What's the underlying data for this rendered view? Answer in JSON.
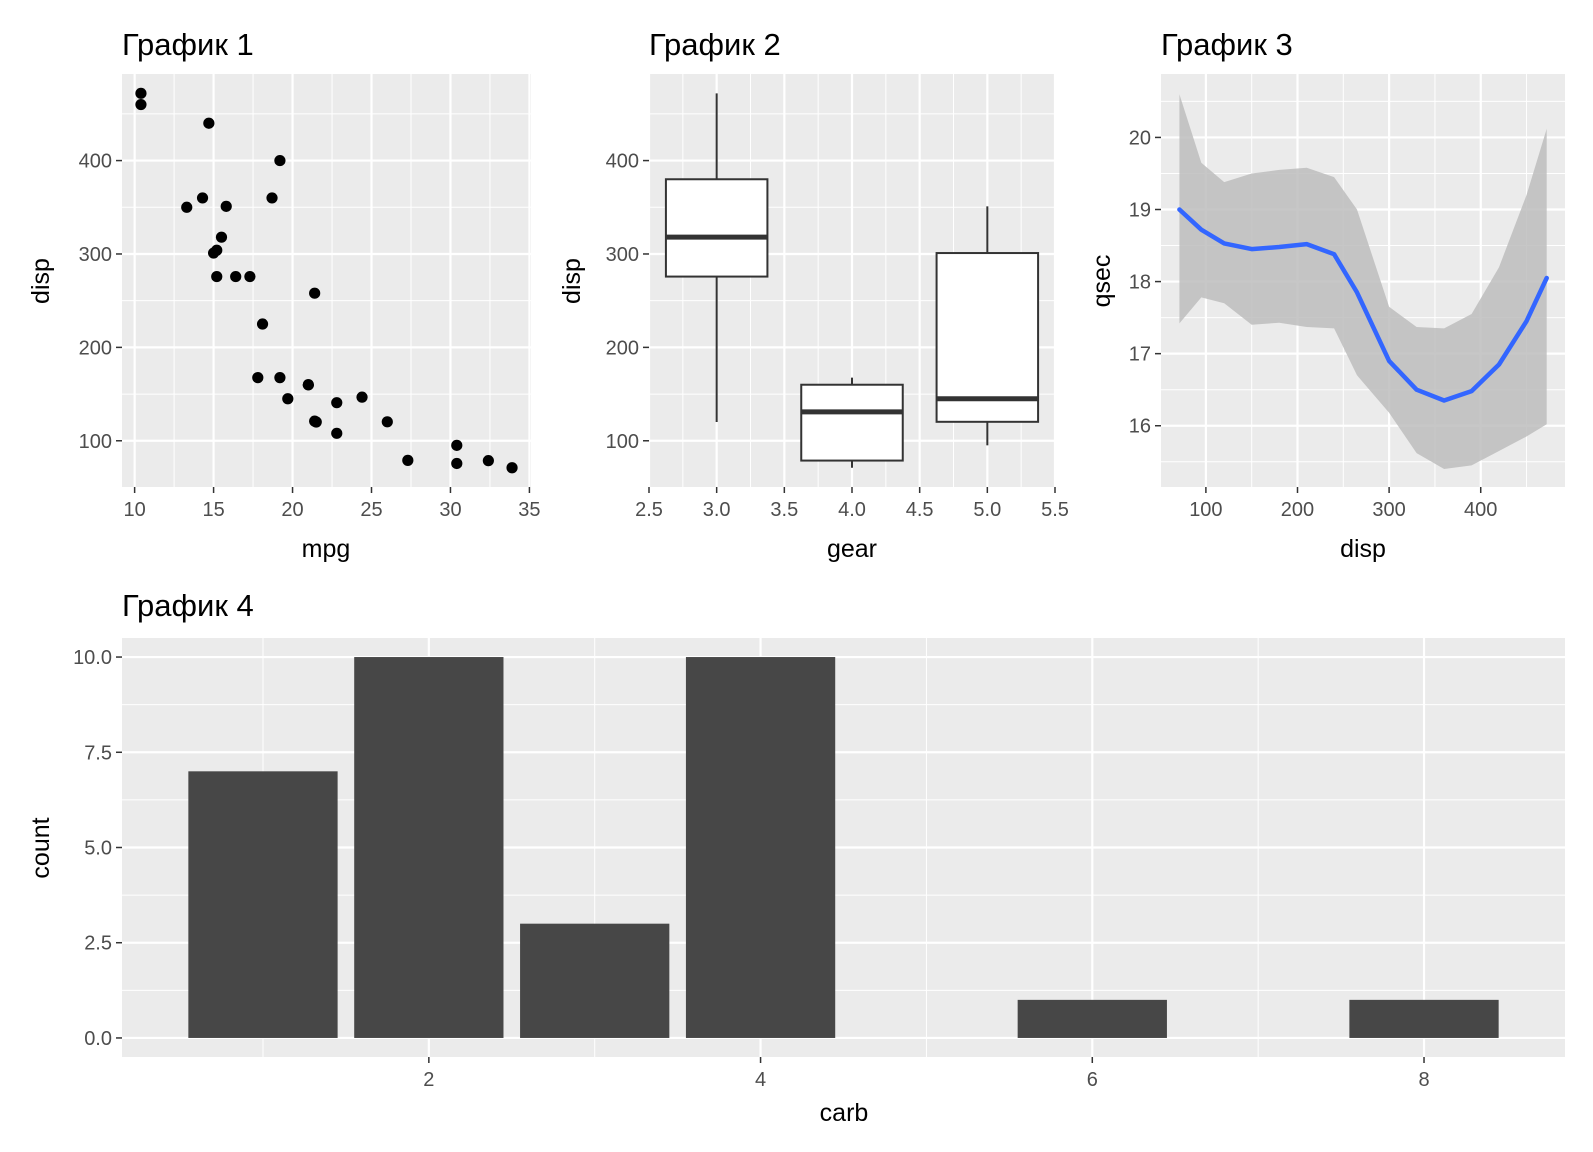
{
  "chart_data": [
    {
      "type": "scatter",
      "title": "График 1",
      "xlabel": "mpg",
      "ylabel": "disp",
      "xlim": [
        9.2,
        35.1
      ],
      "ylim": [
        50.5,
        492.7
      ],
      "xticks": [
        10,
        15,
        20,
        25,
        30,
        35
      ],
      "yticks": [
        100,
        200,
        300,
        400
      ],
      "grid": true,
      "points": [
        [
          21.0,
          160.0
        ],
        [
          21.0,
          160.0
        ],
        [
          22.8,
          108.0
        ],
        [
          21.4,
          258.0
        ],
        [
          18.7,
          360.0
        ],
        [
          18.1,
          225.0
        ],
        [
          14.3,
          360.0
        ],
        [
          24.4,
          146.7
        ],
        [
          22.8,
          140.8
        ],
        [
          19.2,
          167.6
        ],
        [
          17.8,
          167.6
        ],
        [
          16.4,
          275.8
        ],
        [
          17.3,
          275.8
        ],
        [
          15.2,
          275.8
        ],
        [
          10.4,
          472.0
        ],
        [
          10.4,
          460.0
        ],
        [
          14.7,
          440.0
        ],
        [
          32.4,
          78.7
        ],
        [
          30.4,
          75.7
        ],
        [
          33.9,
          71.1
        ],
        [
          21.5,
          120.1
        ],
        [
          15.5,
          318.0
        ],
        [
          15.2,
          304.0
        ],
        [
          13.3,
          350.0
        ],
        [
          19.2,
          400.0
        ],
        [
          27.3,
          79.0
        ],
        [
          26.0,
          120.3
        ],
        [
          30.4,
          95.1
        ],
        [
          15.8,
          351.0
        ],
        [
          19.7,
          145.0
        ],
        [
          15.0,
          301.0
        ],
        [
          21.4,
          121.0
        ]
      ]
    },
    {
      "type": "box",
      "title": "График 2",
      "xlabel": "gear",
      "ylabel": "disp",
      "xlim": [
        2.5,
        5.5
      ],
      "ylim": [
        50.5,
        492.7
      ],
      "xticks": [
        "2.5",
        "3.0",
        "3.5",
        "4.0",
        "4.5",
        "5.0",
        "5.5"
      ],
      "yticks": [
        100,
        200,
        300,
        400
      ],
      "grid": true,
      "boxes": [
        {
          "x": 3,
          "min": 120.1,
          "q1": 275.8,
          "median": 318.0,
          "q3": 380.0,
          "max": 472.0
        },
        {
          "x": 4,
          "min": 71.1,
          "q1": 78.8,
          "median": 130.9,
          "q3": 160.0,
          "max": 167.6
        },
        {
          "x": 5,
          "min": 95.1,
          "q1": 120.3,
          "median": 145.0,
          "q3": 301.0,
          "max": 351.0
        }
      ]
    },
    {
      "type": "line",
      "title": "График 3",
      "xlabel": "disp",
      "ylabel": "qsec",
      "xlim": [
        51.0,
        492.0
      ],
      "ylim": [
        15.15,
        20.88
      ],
      "xticks": [
        100,
        200,
        300,
        400
      ],
      "yticks": [
        16,
        17,
        18,
        19,
        20
      ],
      "grid": true,
      "line_color": "#3366ff",
      "band_color": "#bdbdbd",
      "x": [
        71.1,
        95,
        120,
        150,
        180,
        210,
        240,
        265,
        300,
        330,
        360,
        390,
        420,
        450,
        472
      ],
      "y": [
        19.0,
        18.72,
        18.53,
        18.45,
        18.48,
        18.52,
        18.38,
        17.85,
        16.9,
        16.5,
        16.35,
        16.48,
        16.85,
        17.45,
        18.05
      ],
      "upper": [
        20.6,
        19.65,
        19.38,
        19.5,
        19.55,
        19.58,
        19.45,
        19.0,
        17.65,
        17.37,
        17.35,
        17.55,
        18.2,
        19.2,
        20.12
      ],
      "lower": [
        17.42,
        17.78,
        17.7,
        17.4,
        17.43,
        17.37,
        17.35,
        16.7,
        16.18,
        15.62,
        15.4,
        15.45,
        15.65,
        15.85,
        16.02
      ]
    },
    {
      "type": "bar",
      "title": "График 4",
      "xlabel": "carb",
      "ylabel": "count",
      "xlim": [
        0.15,
        8.85
      ],
      "ylim": [
        -0.5,
        10.5
      ],
      "xticks": [
        2,
        4,
        6,
        8
      ],
      "yticks": [
        "0.0",
        "2.5",
        "5.0",
        "7.5",
        "10.0"
      ],
      "grid": true,
      "bar_color": "#474747",
      "categories": [
        1,
        2,
        3,
        4,
        6,
        8
      ],
      "values": [
        7,
        10,
        3,
        10,
        1,
        1
      ]
    }
  ]
}
